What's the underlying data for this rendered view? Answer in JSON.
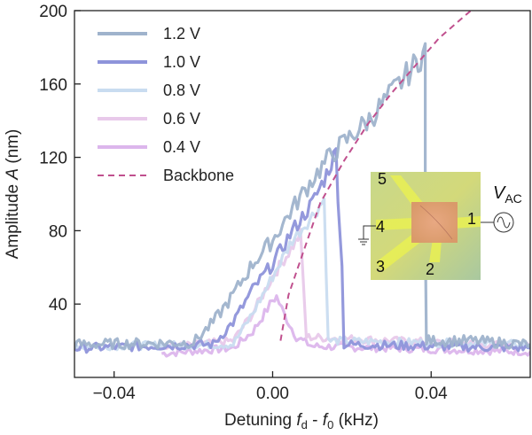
{
  "chart_data": {
    "type": "line",
    "xlabel_parts": [
      "Detuning ",
      "f",
      "d",
      " - ",
      "f",
      "0",
      " (kHz)"
    ],
    "ylabel_parts": [
      "Amplitude ",
      "A",
      " (nm)"
    ],
    "xlim": [
      -0.05,
      0.065
    ],
    "ylim": [
      0,
      200
    ],
    "x_ticks": [
      -0.04,
      0.0,
      0.04
    ],
    "x_tick_labels": [
      "−0.04",
      "0.00",
      "0.04"
    ],
    "y_ticks": [
      40,
      80,
      120,
      160,
      200
    ],
    "y_tick_labels": [
      "40",
      "80",
      "120",
      "160",
      "200"
    ],
    "legend_position": "top-left",
    "series": [
      {
        "name": "1.2 V",
        "color": "#9fb3cc",
        "style": "solid",
        "noise": 4,
        "points": [
          [
            -0.05,
            18
          ],
          [
            -0.02,
            19
          ],
          [
            -0.015,
            30
          ],
          [
            -0.01,
            45
          ],
          [
            -0.005,
            62
          ],
          [
            0.0,
            75
          ],
          [
            0.005,
            92
          ],
          [
            0.01,
            108
          ],
          [
            0.015,
            122
          ],
          [
            0.02,
            132
          ],
          [
            0.025,
            142
          ],
          [
            0.03,
            155
          ],
          [
            0.035,
            168
          ],
          [
            0.0385,
            178
          ],
          [
            0.0385,
            80
          ],
          [
            0.0388,
            20
          ],
          [
            0.05,
            20
          ],
          [
            0.065,
            18
          ]
        ]
      },
      {
        "name": "1.0 V",
        "color": "#8e94da",
        "style": "solid",
        "noise": 3.5,
        "points": [
          [
            -0.05,
            16
          ],
          [
            -0.015,
            18
          ],
          [
            -0.01,
            30
          ],
          [
            -0.005,
            48
          ],
          [
            0.0,
            62
          ],
          [
            0.005,
            80
          ],
          [
            0.01,
            95
          ],
          [
            0.013,
            108
          ],
          [
            0.016,
            123
          ],
          [
            0.0165,
            100
          ],
          [
            0.0175,
            60
          ],
          [
            0.018,
            18
          ],
          [
            0.065,
            16
          ]
        ]
      },
      {
        "name": "0.8 V",
        "color": "#c9dcf0",
        "style": "solid",
        "noise": 3,
        "points": [
          [
            -0.05,
            17
          ],
          [
            -0.01,
            18
          ],
          [
            -0.005,
            35
          ],
          [
            0.0,
            55
          ],
          [
            0.005,
            75
          ],
          [
            0.01,
            88
          ],
          [
            0.013,
            97
          ],
          [
            0.0135,
            60
          ],
          [
            0.014,
            20
          ],
          [
            0.065,
            18
          ]
        ]
      },
      {
        "name": "0.6 V",
        "color": "#e8c9ea",
        "style": "solid",
        "noise": 3,
        "points": [
          [
            -0.028,
            16
          ],
          [
            -0.01,
            20
          ],
          [
            -0.005,
            35
          ],
          [
            0.0,
            55
          ],
          [
            0.004,
            68
          ],
          [
            0.007,
            78
          ],
          [
            0.0078,
            50
          ],
          [
            0.0085,
            22
          ],
          [
            0.065,
            17
          ]
        ]
      },
      {
        "name": "0.4 V",
        "color": "#dcb6ec",
        "style": "solid",
        "noise": 3,
        "points": [
          [
            -0.028,
            13
          ],
          [
            -0.01,
            16
          ],
          [
            -0.005,
            25
          ],
          [
            -0.002,
            35
          ],
          [
            0.0,
            42
          ],
          [
            0.001,
            44
          ],
          [
            0.003,
            34
          ],
          [
            0.006,
            22
          ],
          [
            0.01,
            17
          ],
          [
            0.065,
            14
          ]
        ]
      },
      {
        "name": "Backbone",
        "color": "#c0508e",
        "style": "dashed",
        "noise": 0,
        "points": [
          [
            0.002,
            20
          ],
          [
            0.004,
            45
          ],
          [
            0.008,
            70
          ],
          [
            0.012,
            95
          ],
          [
            0.018,
            118
          ],
          [
            0.024,
            138
          ],
          [
            0.03,
            155
          ],
          [
            0.036,
            170
          ],
          [
            0.042,
            185
          ],
          [
            0.05,
            200
          ]
        ]
      }
    ],
    "inset": {
      "title_main": "V",
      "title_sub": "AC",
      "electrodes": [
        "5",
        "4",
        "1",
        "3",
        "2"
      ]
    }
  }
}
